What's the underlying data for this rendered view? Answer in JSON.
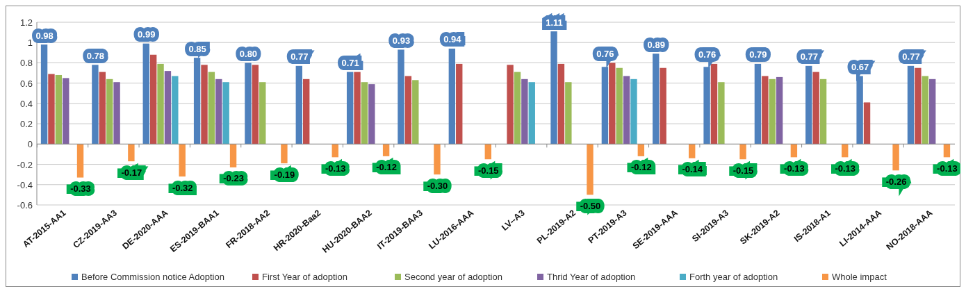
{
  "chart_data": {
    "type": "bar",
    "categories": [
      "AT-2015-AA1",
      "CZ-2019-AA3",
      "DE-2020-AAA",
      "ES-2019-BAA1",
      "FR-2018-AA2",
      "HR-2020-Baa2",
      "HU-2020-BAA2",
      "IT-2019-BAA3",
      "LU-2016-AAA",
      "LV--A3",
      "PL-2019-A2",
      "PT-2019-A3",
      "SE-2019-AAA",
      "SI-2019-A3",
      "SK-2019-A2",
      "IS-2018-A1",
      "LI-2014-AAA",
      "NO-2018-AAA"
    ],
    "series": [
      {
        "name": "Before Commission notice Adoption",
        "color": "#4f81bd",
        "values": [
          0.98,
          0.78,
          0.99,
          0.85,
          0.8,
          0.77,
          0.71,
          0.93,
          0.94,
          null,
          1.11,
          0.76,
          0.89,
          0.76,
          0.79,
          0.77,
          0.67,
          0.77
        ],
        "value_labels": [
          "0.98",
          "0.78",
          "0.99",
          "0.85",
          "0.80",
          "0.77",
          "0.71",
          "0.93",
          "0.94",
          null,
          "1.11",
          "0.76",
          "0.89",
          "0.76",
          "0.79",
          "0.77",
          "0.67",
          "0.77"
        ]
      },
      {
        "name": "First Year of adoption",
        "color": "#c0504d",
        "values": [
          0.69,
          0.71,
          0.88,
          0.78,
          0.78,
          0.64,
          0.71,
          0.67,
          0.79,
          0.78,
          0.79,
          0.8,
          0.75,
          0.79,
          0.67,
          0.71,
          0.41,
          0.75
        ]
      },
      {
        "name": "Second year of adoption",
        "color": "#9bbb59",
        "values": [
          0.68,
          0.64,
          0.79,
          0.71,
          0.61,
          null,
          0.61,
          0.63,
          null,
          0.71,
          0.61,
          0.75,
          null,
          0.61,
          0.64,
          0.64,
          null,
          0.67
        ]
      },
      {
        "name": "Thrid Year of adoption",
        "color": "#8064a2",
        "values": [
          0.65,
          0.61,
          0.72,
          0.64,
          null,
          null,
          0.59,
          null,
          null,
          0.64,
          null,
          0.67,
          null,
          null,
          0.66,
          null,
          null,
          0.64
        ]
      },
      {
        "name": "Forth year of adoption",
        "color": "#4bacc6",
        "values": [
          null,
          null,
          0.67,
          0.61,
          null,
          null,
          null,
          null,
          null,
          0.61,
          null,
          0.64,
          null,
          null,
          null,
          null,
          null,
          null
        ]
      },
      {
        "name": "Whole impact",
        "color": "#f79646",
        "values": [
          -0.33,
          -0.17,
          -0.32,
          -0.23,
          -0.19,
          -0.13,
          -0.12,
          -0.3,
          -0.15,
          null,
          -0.5,
          -0.12,
          -0.14,
          -0.15,
          -0.13,
          -0.13,
          -0.26,
          -0.13
        ],
        "value_labels": [
          "-0.33",
          "-0.17",
          "-0.32",
          "-0.23",
          "-0.19",
          "-0.13",
          "-0.12",
          "-0.30",
          "-0.15",
          null,
          "-0.50",
          "-0.12",
          "-0.14",
          "-0.15",
          "-0.13",
          "-0.13",
          "-0.26",
          "-0.13"
        ]
      }
    ],
    "ylim": [
      -0.6,
      1.2
    ],
    "yticks": [
      -0.6,
      -0.4,
      -0.2,
      0,
      0.2,
      0.4,
      0.6,
      0.8,
      1,
      1.2
    ],
    "grid": "y",
    "legend": "bottom"
  }
}
